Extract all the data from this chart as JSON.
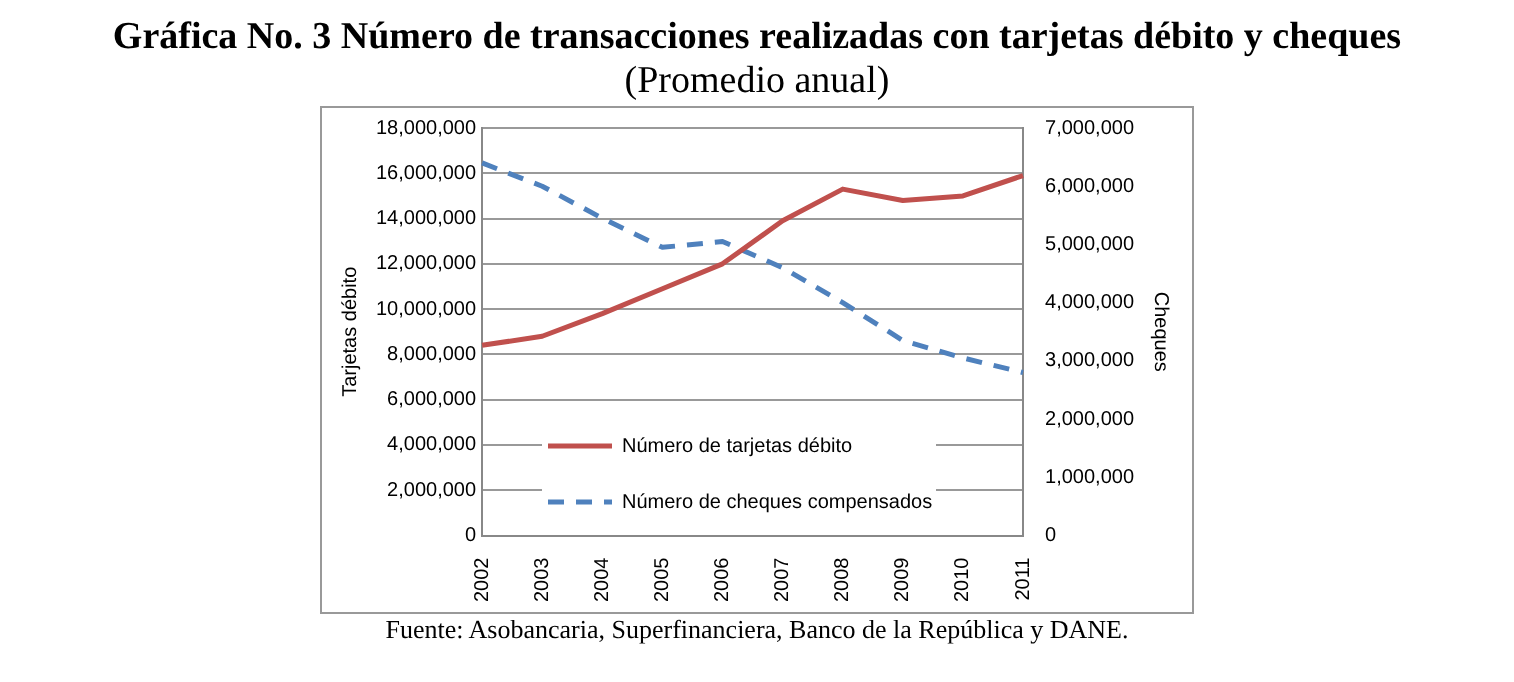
{
  "chart_data": {
    "type": "line",
    "title": "Gráfica No. 3 Número de transacciones realizadas con tarjetas débito y cheques",
    "subtitle": "(Promedio anual)",
    "ylabel": "Tarjetas débito",
    "y2label": "Cheques",
    "categories": [
      "2002",
      "2003",
      "2004",
      "2005",
      "2006",
      "2007",
      "2008",
      "2009",
      "2010",
      "2011"
    ],
    "series": [
      {
        "name": "Número de tarjetas débito",
        "color": "#c0504d",
        "line_style": "solid",
        "values": [
          8400000,
          8800000,
          9800000,
          10900000,
          12000000,
          13900000,
          15300000,
          14800000,
          15000000,
          15900000
        ]
      },
      {
        "name": "Número de cheques compensados",
        "color": "#4f81bd",
        "line_style": "dashed",
        "axis": "y2",
        "values": [
          6400000,
          6000000,
          5450000,
          4950000,
          5050000,
          4600000,
          4000000,
          3350000,
          3050000,
          2800000
        ]
      }
    ],
    "ylim": [
      0,
      18000000
    ],
    "yticks": [
      {
        "value": 0,
        "label": "0"
      },
      {
        "value": 2000000,
        "label": "2,000,000"
      },
      {
        "value": 4000000,
        "label": "4,000,000"
      },
      {
        "value": 6000000,
        "label": "6,000,000"
      },
      {
        "value": 8000000,
        "label": "8,000,000"
      },
      {
        "value": 10000000,
        "label": "10,000,000"
      },
      {
        "value": 12000000,
        "label": "12,000,000"
      },
      {
        "value": 14000000,
        "label": "14,000,000"
      },
      {
        "value": 16000000,
        "label": "16,000,000"
      },
      {
        "value": 18000000,
        "label": "18,000,000"
      }
    ],
    "y2lim": [
      0,
      7000000
    ],
    "y2ticks": [
      {
        "value": 0,
        "label": "0"
      },
      {
        "value": 1000000,
        "label": "1,000,000"
      },
      {
        "value": 2000000,
        "label": "2,000,000"
      },
      {
        "value": 3000000,
        "label": "3,000,000"
      },
      {
        "value": 4000000,
        "label": "4,000,000"
      },
      {
        "value": 5000000,
        "label": "5,000,000"
      },
      {
        "value": 6000000,
        "label": "6,000,000"
      },
      {
        "value": 7000000,
        "label": "7,000,000"
      }
    ],
    "grid": "y",
    "legend": "bottom left",
    "marker": "none",
    "annotations": [
      "Fuente: Asobancaria, Superfinanciera, Banco de la República y DANE."
    ]
  }
}
